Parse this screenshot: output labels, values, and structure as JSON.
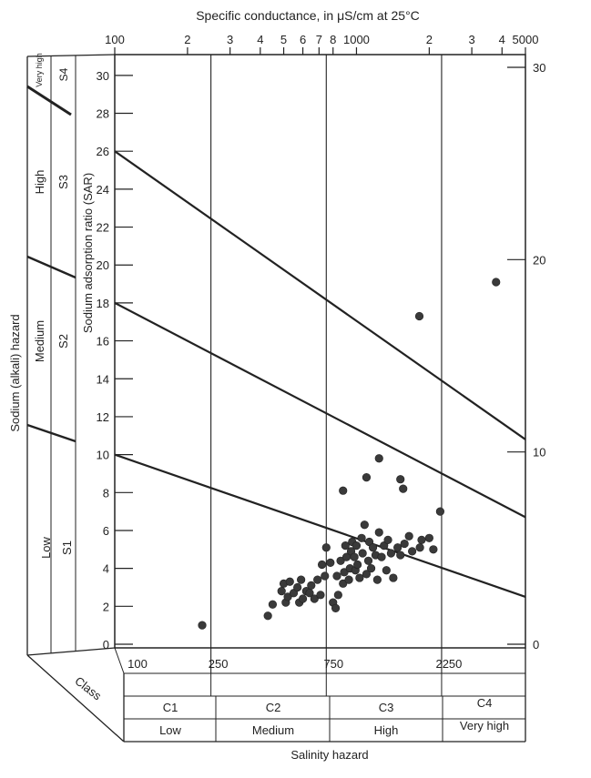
{
  "chart_data": {
    "type": "scatter",
    "title": "",
    "top_axis_label": "Specific conductance, in μS/cm at 25°C",
    "top_ticks": [
      {
        "label": "100",
        "value": 100
      },
      {
        "label": "2",
        "value": 200
      },
      {
        "label": "3",
        "value": 300
      },
      {
        "label": "4",
        "value": 400
      },
      {
        "label": "5",
        "value": 500
      },
      {
        "label": "6",
        "value": 600
      },
      {
        "label": "7",
        "value": 700
      },
      {
        "label": "8",
        "value": 800
      },
      {
        "label": "1000",
        "value": 1000
      },
      {
        "label": "2",
        "value": 2000
      },
      {
        "label": "3",
        "value": 3000
      },
      {
        "label": "4",
        "value": 4000
      },
      {
        "label": "5000",
        "value": 5000
      }
    ],
    "xscale": "log",
    "xlim": [
      100,
      5000
    ],
    "ylabel": "Sodium adsorption ratio (SAR)",
    "ylim": [
      0,
      31
    ],
    "left_ticks": [
      "0",
      "2",
      "4",
      "6",
      "8",
      "10",
      "12",
      "14",
      "16",
      "18",
      "20",
      "22",
      "24",
      "26",
      "28",
      "30"
    ],
    "right_ticks": [
      "0",
      "10",
      "20",
      "30"
    ],
    "salinity_boundaries": [
      {
        "label": "250",
        "value": 250
      },
      {
        "label": "750",
        "value": 750
      },
      {
        "label": "2250",
        "value": 2250
      }
    ],
    "bottom_labels": [
      "100",
      "250",
      "750",
      "2250"
    ],
    "class_label": "Class",
    "xlabel": "Salinity hazard",
    "salinity_classes": [
      {
        "code": "C1",
        "name": "Low"
      },
      {
        "code": "C2",
        "name": "Medium"
      },
      {
        "code": "C3",
        "name": "High"
      },
      {
        "code": "C4",
        "name": "Very high"
      }
    ],
    "sodium_axis_label": "Sodium (alkali) hazard",
    "sodium_classes": [
      {
        "code": "S1",
        "name": "Low"
      },
      {
        "code": "S2",
        "name": "Medium"
      },
      {
        "code": "S3",
        "name": "High"
      },
      {
        "code": "S4",
        "name": "Very high"
      }
    ],
    "hazard_lines": [
      {
        "from": [
          100,
          10
        ],
        "to": [
          5000,
          2.5
        ]
      },
      {
        "from": [
          100,
          18
        ],
        "to": [
          5000,
          6.7
        ]
      },
      {
        "from": [
          100,
          26
        ],
        "to": [
          5000,
          10.8
        ]
      }
    ],
    "points": [
      [
        230,
        1.0
      ],
      [
        430,
        1.5
      ],
      [
        450,
        2.1
      ],
      [
        490,
        2.8
      ],
      [
        500,
        3.2
      ],
      [
        510,
        2.2
      ],
      [
        520,
        2.5
      ],
      [
        530,
        3.3
      ],
      [
        550,
        2.7
      ],
      [
        570,
        3.0
      ],
      [
        580,
        2.2
      ],
      [
        590,
        3.4
      ],
      [
        600,
        2.4
      ],
      [
        620,
        2.8
      ],
      [
        640,
        2.7
      ],
      [
        650,
        3.1
      ],
      [
        670,
        2.4
      ],
      [
        690,
        3.4
      ],
      [
        710,
        2.6
      ],
      [
        720,
        4.2
      ],
      [
        740,
        3.6
      ],
      [
        750,
        5.1
      ],
      [
        780,
        4.3
      ],
      [
        800,
        2.2
      ],
      [
        820,
        1.9
      ],
      [
        830,
        3.6
      ],
      [
        840,
        2.6
      ],
      [
        860,
        4.4
      ],
      [
        880,
        3.2
      ],
      [
        890,
        3.8
      ],
      [
        900,
        5.2
      ],
      [
        910,
        4.6
      ],
      [
        930,
        3.4
      ],
      [
        940,
        4.0
      ],
      [
        950,
        4.9
      ],
      [
        960,
        5.4
      ],
      [
        980,
        4.6
      ],
      [
        990,
        3.9
      ],
      [
        1000,
        5.2
      ],
      [
        1010,
        4.2
      ],
      [
        1030,
        3.5
      ],
      [
        1050,
        5.6
      ],
      [
        1060,
        4.8
      ],
      [
        1080,
        6.3
      ],
      [
        1100,
        3.7
      ],
      [
        1120,
        4.4
      ],
      [
        1130,
        5.4
      ],
      [
        1150,
        4.0
      ],
      [
        1170,
        5.1
      ],
      [
        1200,
        4.7
      ],
      [
        1220,
        3.4
      ],
      [
        1240,
        5.9
      ],
      [
        1270,
        4.6
      ],
      [
        1300,
        5.2
      ],
      [
        1330,
        3.9
      ],
      [
        1350,
        5.5
      ],
      [
        1390,
        4.8
      ],
      [
        1420,
        3.5
      ],
      [
        1480,
        5.1
      ],
      [
        1520,
        4.7
      ],
      [
        1580,
        5.3
      ],
      [
        1650,
        5.7
      ],
      [
        1700,
        4.9
      ],
      [
        1830,
        5.1
      ],
      [
        1860,
        5.5
      ],
      [
        2000,
        5.6
      ],
      [
        2080,
        5.0
      ],
      [
        880,
        8.1
      ],
      [
        1100,
        8.8
      ],
      [
        1240,
        9.8
      ],
      [
        1520,
        8.7
      ],
      [
        1560,
        8.2
      ],
      [
        1820,
        17.3
      ],
      [
        2220,
        7.0
      ],
      [
        3780,
        19.1
      ]
    ]
  }
}
